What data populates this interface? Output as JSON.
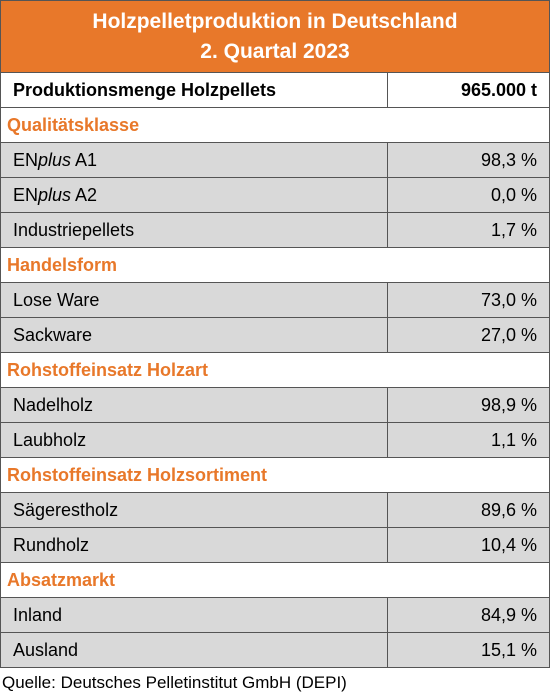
{
  "header": {
    "title_lines": [
      "Holzpelletproduktion in Deutschland",
      "2. Quartal 2023"
    ]
  },
  "table": {
    "summary": {
      "label": "Produktionsmenge Holzpellets",
      "value": "965.000 t"
    },
    "sections": [
      {
        "title": "Qualitätsklasse",
        "rows": [
          {
            "label": [
              "EN",
              "plus",
              " A1"
            ],
            "value": "98,3 %"
          },
          {
            "label": [
              "EN",
              "plus",
              " A2"
            ],
            "value": "0,0 %"
          },
          {
            "label": "Industriepellets",
            "value": "1,7 %"
          }
        ]
      },
      {
        "title": "Handelsform",
        "rows": [
          {
            "label": "Lose Ware",
            "value": "73,0 %"
          },
          {
            "label": "Sackware",
            "value": "27,0 %"
          }
        ]
      },
      {
        "title": "Rohstoffeinsatz Holzart",
        "rows": [
          {
            "label": "Nadelholz",
            "value": "98,9 %"
          },
          {
            "label": "Laubholz",
            "value": "1,1 %"
          }
        ]
      },
      {
        "title": "Rohstoffeinsatz Holzsortiment",
        "rows": [
          {
            "label": "Sägerestholz",
            "value": "89,6 %"
          },
          {
            "label": "Rundholz",
            "value": "10,4 %"
          }
        ]
      },
      {
        "title": "Absatzmarkt",
        "rows": [
          {
            "label": "Inland",
            "value": "84,9 %"
          },
          {
            "label": "Ausland",
            "value": "15,1 %"
          }
        ]
      }
    ]
  },
  "source": "Quelle: Deutsches Pelletinstitut GmbH (DEPI)"
}
